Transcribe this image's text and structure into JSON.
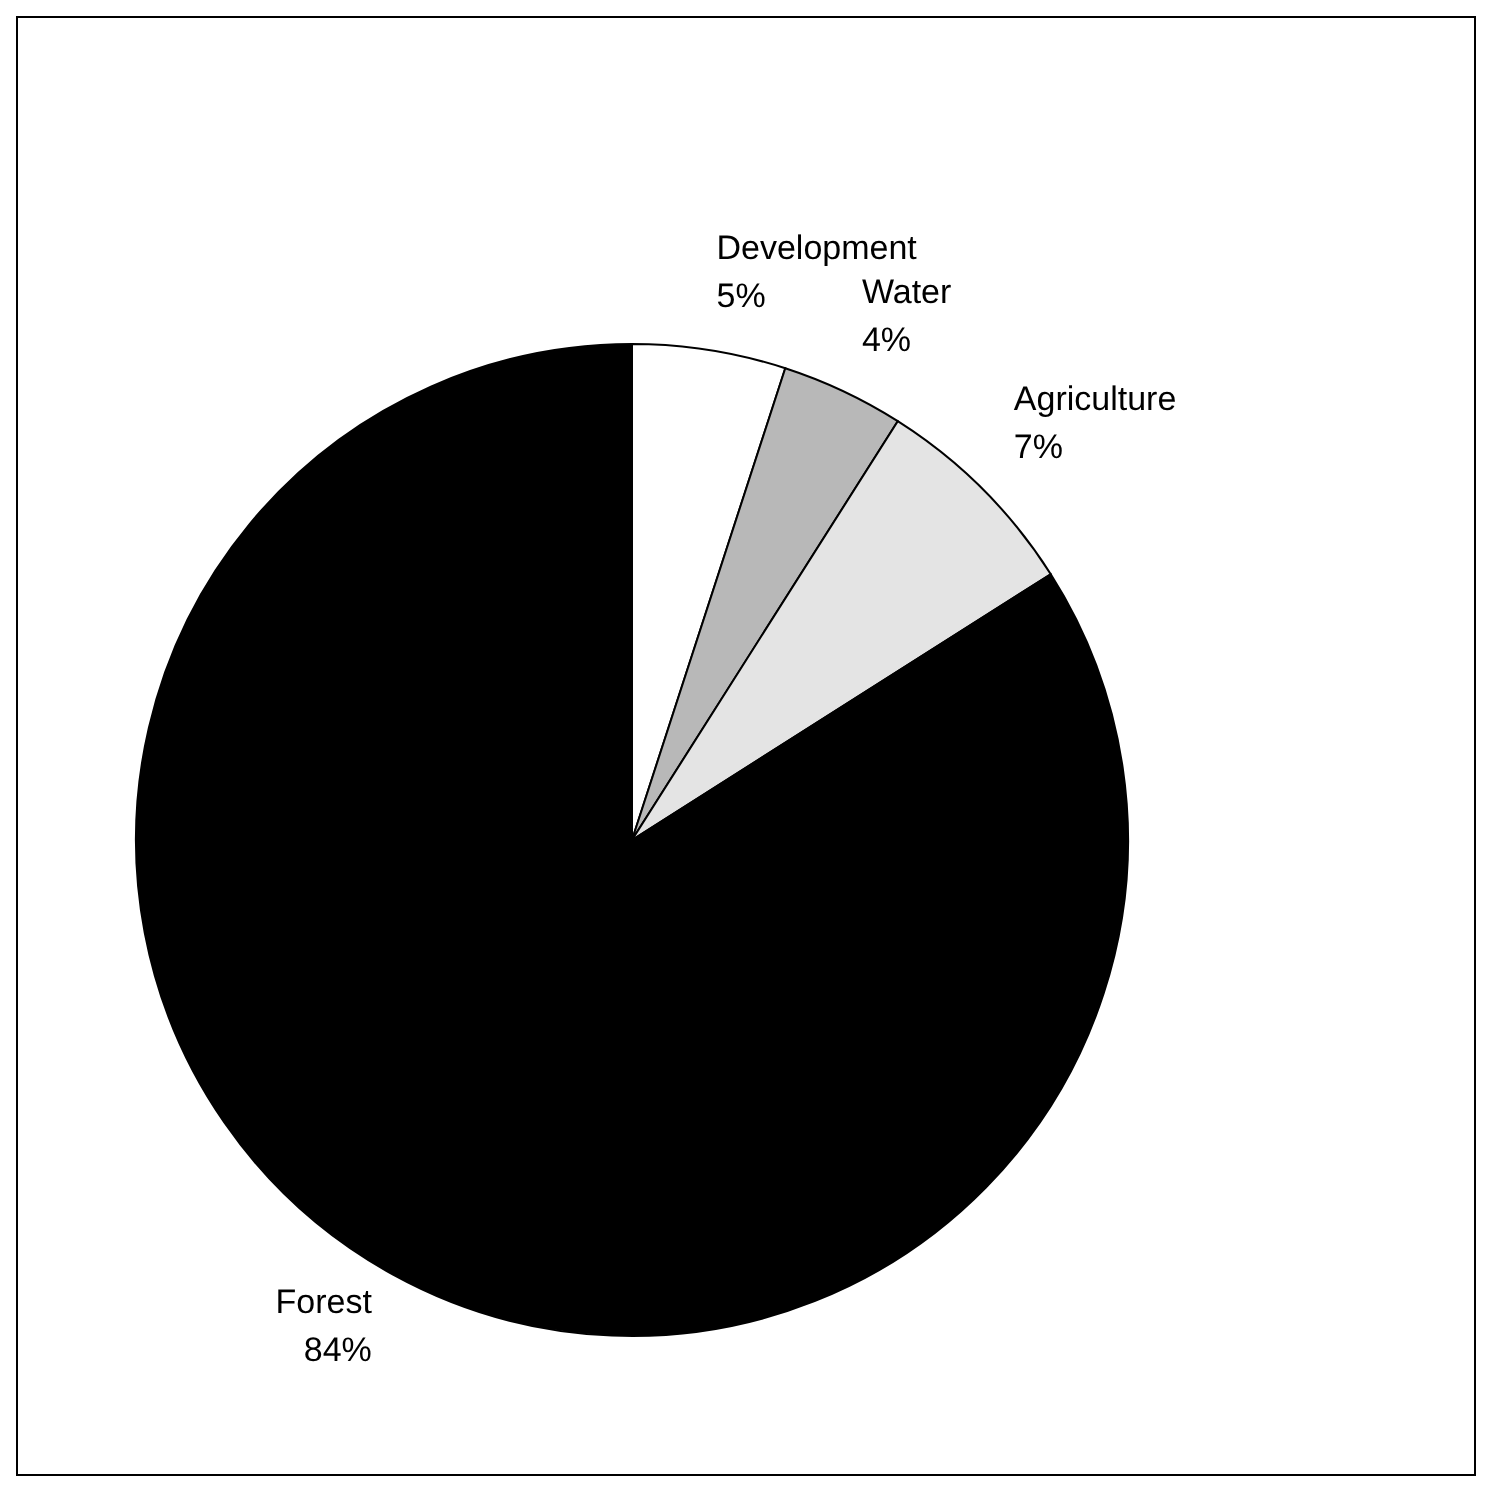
{
  "chart_data": {
    "type": "pie",
    "categories": [
      "Development",
      "Water",
      "Agriculture",
      "Forest"
    ],
    "values": [
      5,
      4,
      7,
      84
    ],
    "colors": [
      "#ffffff",
      "#b8b8b8",
      "#e4e4e4",
      "#000000"
    ],
    "value_labels": [
      "5%",
      "4%",
      "7%",
      "84%"
    ]
  }
}
